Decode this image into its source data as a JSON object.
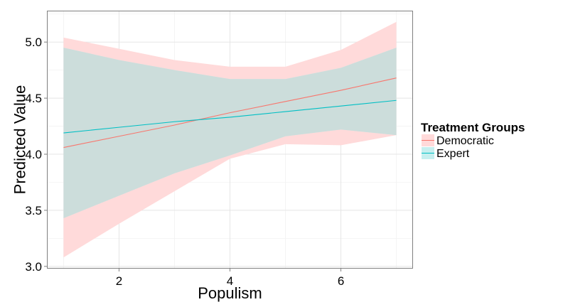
{
  "chart_data": {
    "type": "line",
    "title": "",
    "xlabel": "Populism",
    "ylabel": "Predicted Value",
    "xlim": [
      0.7,
      7.3
    ],
    "ylim": [
      2.98,
      5.28
    ],
    "x_ticks": [
      2,
      4,
      6
    ],
    "y_ticks": [
      3.0,
      3.5,
      4.0,
      4.5,
      5.0
    ],
    "x_tick_labels": [
      "2",
      "4",
      "6"
    ],
    "y_tick_labels": [
      "3.0",
      "3.5",
      "4.0",
      "4.5",
      "5.0"
    ],
    "grid": true,
    "legend": {
      "title": "Treatment Groups",
      "position": "right"
    },
    "x": [
      1,
      2,
      3,
      4,
      5,
      6,
      7
    ],
    "series": [
      {
        "name": "Democratic",
        "line_color": "#F8766D",
        "fill_color": "#FFDADA",
        "values": [
          4.06,
          4.16,
          4.26,
          4.37,
          4.47,
          4.57,
          4.68
        ],
        "lower": [
          3.08,
          3.38,
          3.67,
          3.96,
          4.09,
          4.08,
          4.17
        ],
        "upper": [
          5.04,
          4.94,
          4.84,
          4.78,
          4.78,
          4.93,
          5.18
        ]
      },
      {
        "name": "Expert",
        "line_color": "#00BFC4",
        "fill_color": "#C6EFEF",
        "values": [
          4.19,
          4.24,
          4.29,
          4.33,
          4.38,
          4.43,
          4.48
        ],
        "lower": [
          3.43,
          3.63,
          3.83,
          3.99,
          4.16,
          4.22,
          4.17
        ],
        "upper": [
          4.95,
          4.84,
          4.75,
          4.67,
          4.67,
          4.77,
          4.95
        ]
      }
    ],
    "overlap_color": "#CCDDDB"
  }
}
